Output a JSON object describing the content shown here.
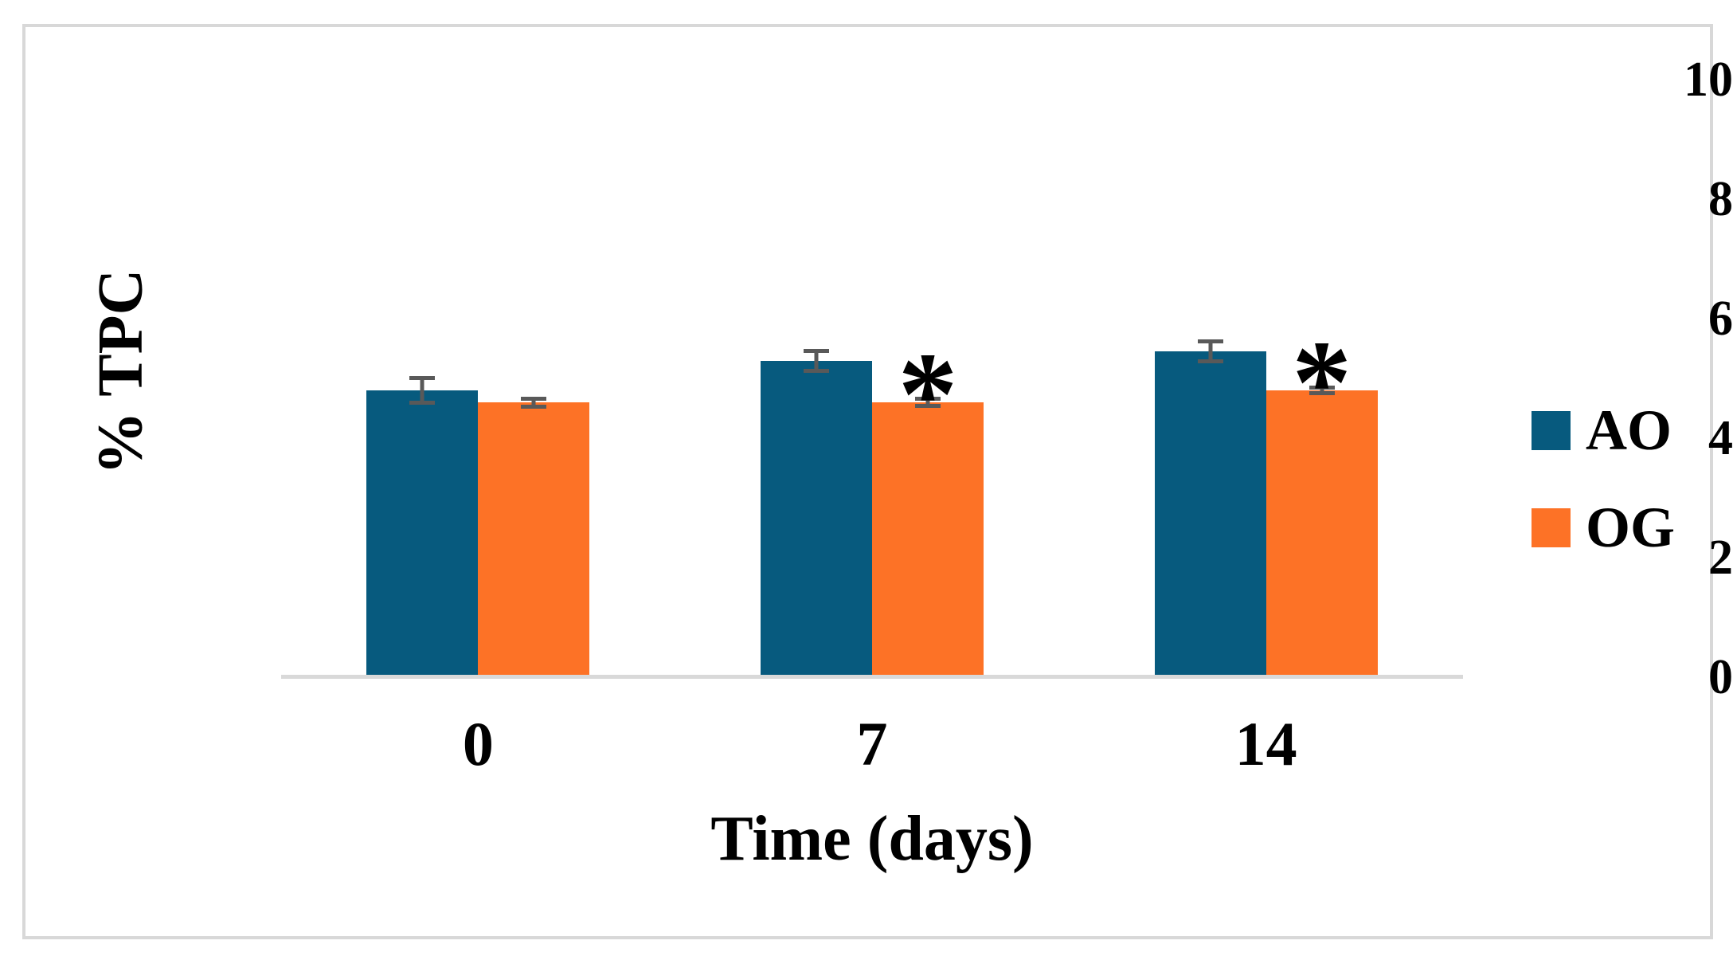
{
  "figure": {
    "background": "#ffffff",
    "frame_border_color": "#d8d8d8"
  },
  "chart_data": {
    "type": "bar",
    "title": "",
    "xlabel": "Time (days)",
    "ylabel": "% TPC",
    "categories": [
      "0",
      "7",
      "14"
    ],
    "series": [
      {
        "name": "AO",
        "color": "#075a7e",
        "values": [
          4.8,
          5.3,
          5.45
        ],
        "errors": [
          0.24,
          0.2,
          0.2
        ],
        "significant": [
          false,
          false,
          false
        ]
      },
      {
        "name": "OG",
        "color": "#fd7226",
        "values": [
          4.6,
          4.6,
          4.8
        ],
        "errors": [
          0.1,
          0.09,
          0.08
        ],
        "significant": [
          false,
          true,
          true
        ]
      }
    ],
    "significance_marker": "*",
    "yticks": [
      0,
      2,
      4,
      6,
      8,
      10
    ],
    "ylim": [
      0,
      10
    ],
    "gridlines": false,
    "legend_position": "right",
    "error_bar_color": "#595959",
    "axis_line_color": "#d9d9d9"
  }
}
